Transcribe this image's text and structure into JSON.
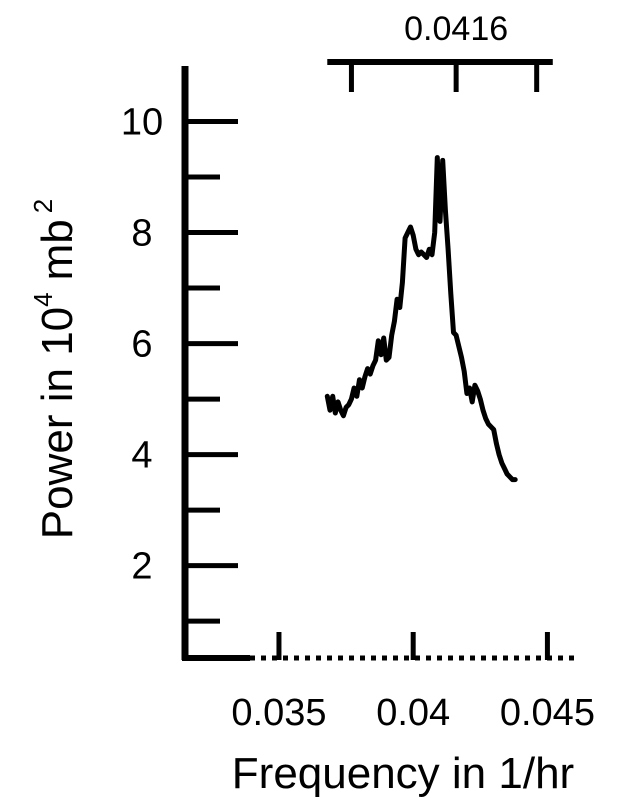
{
  "chart_data": {
    "type": "line",
    "title": "",
    "xlabel": "Frequency in 1/hr",
    "ylabel": {
      "prefix": "Power in 10",
      "exp1": "4",
      "unit": "mb",
      "exp2": "2"
    },
    "xlim": [
      0.0315,
      0.0464
    ],
    "ylim": [
      0.3,
      11.0
    ],
    "x_ticks": [
      {
        "value": 0.035,
        "label": "0.035"
      },
      {
        "value": 0.04,
        "label": "0.04"
      },
      {
        "value": 0.045,
        "label": "0.045"
      }
    ],
    "y_major_ticks": [
      {
        "value": 2,
        "label": "2"
      },
      {
        "value": 4,
        "label": "4"
      },
      {
        "value": 6,
        "label": "6"
      },
      {
        "value": 8,
        "label": "8"
      },
      {
        "value": 10,
        "label": "10"
      }
    ],
    "y_minor_ticks": [
      1,
      3,
      5,
      7,
      9
    ],
    "marker": {
      "label": "0.0416",
      "value": 0.0416,
      "span": [
        0.0368,
        0.0452
      ],
      "ticks": [
        0.0377,
        0.0416,
        0.0446
      ]
    },
    "grid": false,
    "legend": "none",
    "series": [
      {
        "color": "#000000",
        "x": [
          0.0368,
          0.0369,
          0.037,
          0.0371,
          0.0372,
          0.0373,
          0.0374,
          0.0375,
          0.0376,
          0.0377,
          0.0378,
          0.0379,
          0.038,
          0.0381,
          0.0382,
          0.0383,
          0.0384,
          0.0385,
          0.0386,
          0.0387,
          0.0388,
          0.0389,
          0.039,
          0.0391,
          0.0392,
          0.0393,
          0.0394,
          0.0395,
          0.0396,
          0.0397,
          0.0398,
          0.0399,
          0.04,
          0.0401,
          0.0402,
          0.0403,
          0.0404,
          0.0405,
          0.0406,
          0.0407,
          0.0408,
          0.0409,
          0.041,
          0.0411,
          0.0412,
          0.0413,
          0.0414,
          0.0415,
          0.0416,
          0.0417,
          0.0418,
          0.0419,
          0.042,
          0.0421,
          0.0422,
          0.0423,
          0.0424,
          0.0425,
          0.0426,
          0.0427,
          0.0428,
          0.0429,
          0.043,
          0.0431,
          0.0432,
          0.0433,
          0.0434,
          0.0435,
          0.0436,
          0.0437,
          0.0438
        ],
        "y": [
          5.05,
          4.8,
          5.05,
          4.75,
          4.95,
          4.8,
          4.7,
          4.85,
          4.9,
          5.0,
          5.2,
          5.05,
          5.35,
          5.2,
          5.4,
          5.55,
          5.45,
          5.6,
          5.7,
          6.05,
          5.8,
          6.1,
          5.7,
          5.75,
          6.15,
          6.4,
          6.8,
          6.65,
          7.1,
          7.9,
          8.0,
          8.1,
          7.95,
          7.7,
          7.6,
          7.65,
          7.6,
          7.55,
          7.7,
          7.6,
          8.0,
          9.35,
          8.2,
          9.3,
          8.4,
          7.7,
          6.9,
          6.2,
          6.15,
          5.95,
          5.75,
          5.5,
          5.1,
          5.2,
          4.95,
          5.25,
          5.15,
          5.0,
          4.8,
          4.65,
          4.55,
          4.5,
          4.45,
          4.2,
          4.0,
          3.85,
          3.75,
          3.65,
          3.6,
          3.55,
          3.55
        ]
      }
    ]
  }
}
